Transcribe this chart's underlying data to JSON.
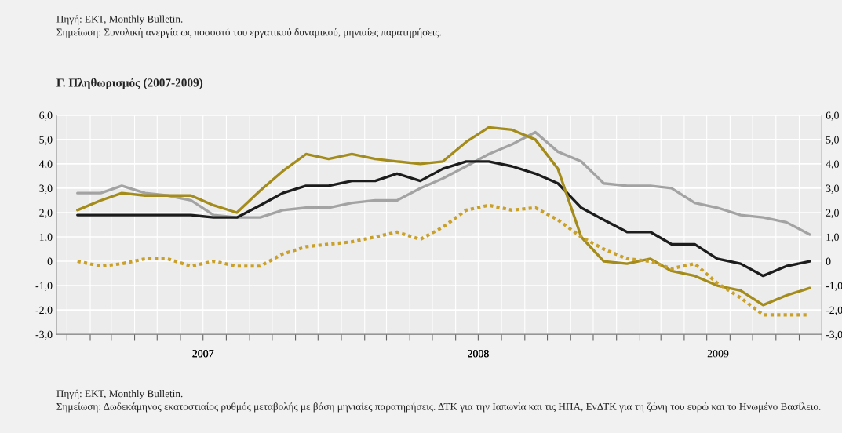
{
  "chart_data": {
    "type": "line",
    "title": "Γ. Πληθωρισμός (2007-2009)",
    "annotations": [
      "Πηγή: ΕΚΤ, Monthly Bulletin.",
      "Σημείωση: Συνολική ανεργία ως ποσοστό του εργατικού δυναμικού, μηνιαίες παρατηρήσεις.",
      "Πηγή: ΕΚΤ, Monthly Bulletin.",
      "Σημείωση: Δωδεκάμηνος εκατοστιαίος ρυθμός μεταβολής με βάση μηνιαίες παρατηρήσεις. ΔΤΚ για την Ιαπωνία και τις ΗΠΑ, ΕνΔΤΚ για τη ζώνη του ευρώ και το Ηνωμένο Βασίλειο."
    ],
    "x": [
      "2007-01-15",
      "2007-02-15",
      "2007-03-15",
      "2007-04-15",
      "2007-05-15",
      "2007-06-15",
      "2007-07-15",
      "2007-08-15",
      "2007-09-15",
      "2007-10-15",
      "2007-11-15",
      "2007-12-15",
      "2008-01-15",
      "2008-02-15",
      "2008-03-15",
      "2008-04-15",
      "2008-05-15",
      "2008-06-15",
      "2008-07-15",
      "2008-08-15",
      "2008-09-15",
      "2008-10-15",
      "2008-11-15",
      "2008-12-15",
      "2009-01-15",
      "2009-02-15",
      "2009-03-15",
      "2009-04-15",
      "2009-05-15",
      "2009-06-15",
      "2009-07-15",
      "2009-08-15",
      "2009-09-15"
    ],
    "series": [
      {
        "color": "#a3a3a3",
        "line_style": "solid",
        "values": [
          2.8,
          2.8,
          3.1,
          2.8,
          2.7,
          2.5,
          1.9,
          1.8,
          1.8,
          2.1,
          2.2,
          2.2,
          2.4,
          2.5,
          2.5,
          3.0,
          3.4,
          3.9,
          4.4,
          4.8,
          5.3,
          4.5,
          4.1,
          3.2,
          3.1,
          3.1,
          3.0,
          2.4,
          2.2,
          1.9,
          1.8,
          1.6,
          1.1
        ]
      },
      {
        "color": "#1c1c1c",
        "line_style": "solid",
        "values": [
          1.9,
          1.9,
          1.9,
          1.9,
          1.9,
          1.9,
          1.8,
          1.8,
          2.3,
          2.8,
          3.1,
          3.1,
          3.3,
          3.3,
          3.6,
          3.3,
          3.8,
          4.1,
          4.1,
          3.9,
          3.6,
          3.2,
          2.2,
          1.7,
          1.2,
          1.2,
          0.7,
          0.7,
          0.1,
          -0.1,
          -0.6,
          -0.2,
          0.0
        ]
      },
      {
        "color": "#a48c1c",
        "line_style": "solid",
        "values": [
          2.1,
          2.5,
          2.8,
          2.7,
          2.7,
          2.7,
          2.3,
          2.0,
          2.9,
          3.7,
          4.4,
          4.2,
          4.4,
          4.2,
          4.1,
          4.0,
          4.1,
          4.9,
          5.5,
          5.4,
          5.0,
          3.8,
          1.0,
          0.0,
          -0.1,
          0.1,
          -0.4,
          -0.6,
          -1.0,
          -1.2,
          -1.8,
          -1.4,
          -1.1
        ]
      },
      {
        "color": "#c9a12a",
        "line_style": "dotted",
        "values": [
          0.0,
          -0.2,
          -0.1,
          0.1,
          0.1,
          -0.2,
          0.0,
          -0.2,
          -0.2,
          0.3,
          0.6,
          0.7,
          0.8,
          1.0,
          1.2,
          0.9,
          1.4,
          2.1,
          2.3,
          2.1,
          2.2,
          1.7,
          1.0,
          0.5,
          0.1,
          0.0,
          -0.3,
          -0.1,
          -0.9,
          -1.5,
          -2.2,
          -2.2,
          -2.2
        ]
      }
    ],
    "xlim": [
      "2006-12-18",
      "2009-10-01"
    ],
    "xticks": [
      {
        "value": "2007-01-01",
        "label": null
      },
      {
        "value": "2007-02-01",
        "label": null
      },
      {
        "value": "2007-03-01",
        "label": null
      },
      {
        "value": "2007-04-01",
        "label": null
      },
      {
        "value": "2007-05-01",
        "label": null
      },
      {
        "value": "2007-06-01",
        "label": null
      },
      {
        "value": "2007-07-01",
        "label": null
      },
      {
        "value": "2007-08-01",
        "label": null
      },
      {
        "value": "2007-09-01",
        "label": null
      },
      {
        "value": "2007-10-01",
        "label": null
      },
      {
        "value": "2007-11-01",
        "label": null
      },
      {
        "value": "2007-12-01",
        "label": null
      },
      {
        "value": "2008-01-01",
        "label": null
      },
      {
        "value": "2008-02-01",
        "label": null
      },
      {
        "value": "2008-03-01",
        "label": null
      },
      {
        "value": "2008-04-01",
        "label": null
      },
      {
        "value": "2008-05-01",
        "label": null
      },
      {
        "value": "2008-06-01",
        "label": null
      },
      {
        "value": "2008-07-01",
        "label": null
      },
      {
        "value": "2008-08-01",
        "label": null
      },
      {
        "value": "2008-09-01",
        "label": null
      },
      {
        "value": "2008-10-01",
        "label": null
      },
      {
        "value": "2008-11-01",
        "label": null
      },
      {
        "value": "2008-12-01",
        "label": null
      },
      {
        "value": "2009-01-01",
        "label": null
      },
      {
        "value": "2009-02-01",
        "label": null
      },
      {
        "value": "2009-03-01",
        "label": null
      },
      {
        "value": "2009-04-01",
        "label": null
      },
      {
        "value": "2009-05-01",
        "label": null
      },
      {
        "value": "2009-06-01",
        "label": null
      },
      {
        "value": "2009-07-01",
        "label": null
      },
      {
        "value": "2009-08-01",
        "label": null
      },
      {
        "value": "2009-09-01",
        "label": null
      },
      {
        "value": "2009-10-01",
        "label": null
      },
      {
        "value": "2007-07-01",
        "label": "2007"
      },
      {
        "value": "2008-07-01",
        "label": "2008"
      },
      {
        "value": "2009-05-16",
        "label": "2009"
      }
    ],
    "ylim": [
      -3,
      6
    ],
    "yticks": [
      {
        "value": -3,
        "label": "-3,0"
      },
      {
        "value": -2,
        "label": "-2,0"
      },
      {
        "value": -1,
        "label": "-1,0"
      },
      {
        "value": 0,
        "label": "0"
      },
      {
        "value": 1,
        "label": "1,0"
      },
      {
        "value": 2,
        "label": "2,0"
      },
      {
        "value": 3,
        "label": "3,0"
      },
      {
        "value": 4,
        "label": "4,0"
      },
      {
        "value": 5,
        "label": "5,0"
      },
      {
        "value": 6,
        "label": "6,0"
      }
    ],
    "y2lim": [
      -3,
      6
    ],
    "y2ticks": [
      {
        "value": -3,
        "label": "-3,0"
      },
      {
        "value": -2,
        "label": "-2,0"
      },
      {
        "value": -1,
        "label": "-1,0"
      },
      {
        "value": 0,
        "label": "0"
      },
      {
        "value": 1,
        "label": "1,0"
      },
      {
        "value": 2,
        "label": "2,0"
      },
      {
        "value": 3,
        "label": "3,0"
      },
      {
        "value": 4,
        "label": "4,0"
      },
      {
        "value": 5,
        "label": "5,0"
      },
      {
        "value": 6,
        "label": "6,0"
      }
    ],
    "grid": true,
    "marker": "none"
  }
}
